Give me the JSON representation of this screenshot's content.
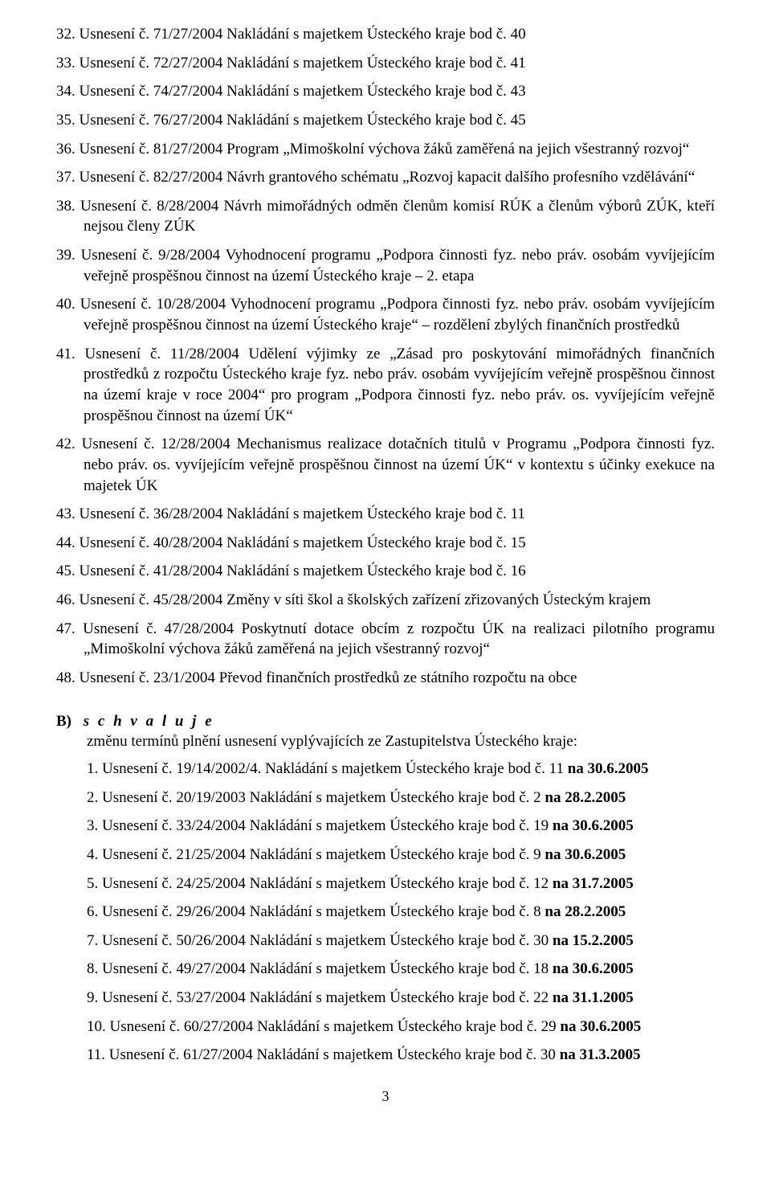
{
  "listA": [
    {
      "num": "32.",
      "text": "Usnesení č. 71/27/2004 Nakládání s majetkem Ústeckého kraje bod č. 40"
    },
    {
      "num": "33.",
      "text": "Usnesení č. 72/27/2004 Nakládání s majetkem Ústeckého kraje bod č. 41"
    },
    {
      "num": "34.",
      "text": "Usnesení č. 74/27/2004 Nakládání s majetkem Ústeckého kraje bod č. 43"
    },
    {
      "num": "35.",
      "text": "Usnesení č. 76/27/2004 Nakládání s majetkem Ústeckého kraje bod č. 45"
    },
    {
      "num": "36.",
      "text": "Usnesení č. 81/27/2004 Program „Mimoškolní výchova žáků zaměřená na jejich všestranný rozvoj“"
    },
    {
      "num": "37.",
      "text": "Usnesení č. 82/27/2004 Návrh grantového schématu „Rozvoj kapacit dalšího profesního vzdělávání“"
    },
    {
      "num": "38.",
      "text": "Usnesení č. 8/28/2004 Návrh mimořádných odměn členům komisí RÚK a členům výborů ZÚK, kteří nejsou členy ZÚK"
    },
    {
      "num": "39.",
      "text": "Usnesení č. 9/28/2004 Vyhodnocení programu „Podpora činnosti fyz. nebo práv. osobám vyvíjejícím veřejně prospěšnou činnost na území Ústeckého kraje – 2. etapa"
    },
    {
      "num": "40.",
      "text": "Usnesení č. 10/28/2004 Vyhodnocení programu „Podpora činnosti fyz. nebo práv. osobám vyvíjejícím veřejně prospěšnou činnost na území Ústeckého kraje“ – rozdělení zbylých finančních prostředků"
    },
    {
      "num": "41.",
      "text": "Usnesení č. 11/28/2004 Udělení výjimky ze „Zásad pro poskytování mimořádných finančních prostředků z rozpočtu Ústeckého kraje fyz. nebo práv. osobám vyvíjejícím veřejně prospěšnou činnost na území kraje v roce 2004“ pro program „Podpora činnosti fyz. nebo práv. os. vyvíjejícím veřejně prospěšnou činnost na území ÚK“"
    },
    {
      "num": "42.",
      "text": "Usnesení č. 12/28/2004 Mechanismus realizace dotačních titulů v Programu „Podpora činnosti fyz. nebo práv. os. vyvíjejícím veřejně prospěšnou činnost na území ÚK“ v kontextu s účinky exekuce na majetek ÚK"
    },
    {
      "num": "43.",
      "text": "Usnesení č. 36/28/2004 Nakládání s majetkem Ústeckého kraje bod č. 11"
    },
    {
      "num": "44.",
      "text": "Usnesení č. 40/28/2004 Nakládání s majetkem Ústeckého kraje bod č. 15"
    },
    {
      "num": "45.",
      "text": "Usnesení č. 41/28/2004 Nakládání s majetkem Ústeckého kraje bod č. 16"
    },
    {
      "num": "46.",
      "text": "Usnesení č. 45/28/2004 Změny v síti škol a školských zařízení zřizovaných Ústeckým krajem"
    },
    {
      "num": "47.",
      "text": "Usnesení č. 47/28/2004 Poskytnutí dotace obcím z rozpočtu ÚK na realizaci pilotního programu „Mimoškolní výchova žáků zaměřená na jejich všestranný rozvoj“"
    },
    {
      "num": "48.",
      "text": "Usnesení č. 23/1/2004 Převod finančních prostředků ze státního rozpočtu na obce"
    }
  ],
  "sectionB": {
    "prefix": "B)",
    "label": "s c h v a l u j e",
    "intro": "změnu termínů plnění usnesení vyplývajících ze Zastupitelstva Ústeckého kraje:",
    "items": [
      {
        "num": "1.",
        "text": "Usnesení č. 19/14/2002/4. Nakládání s majetkem Ústeckého kraje bod č. 11 ",
        "bold": "na 30.6.2005"
      },
      {
        "num": "2.",
        "text": "Usnesení č. 20/19/2003 Nakládání s majetkem Ústeckého kraje bod č. 2 ",
        "bold": "na 28.2.2005"
      },
      {
        "num": "3.",
        "text": "Usnesení č. 33/24/2004 Nakládání s majetkem Ústeckého kraje bod č. 19 ",
        "bold": "na 30.6.2005"
      },
      {
        "num": "4.",
        "text": "Usnesení č. 21/25/2004 Nakládání s majetkem Ústeckého kraje bod č. 9 ",
        "bold": "na 30.6.2005"
      },
      {
        "num": "5.",
        "text": "Usnesení č. 24/25/2004 Nakládání s majetkem Ústeckého kraje bod č. 12 ",
        "bold": "na 31.7.2005"
      },
      {
        "num": "6.",
        "text": "Usnesení č. 29/26/2004 Nakládání s majetkem Ústeckého kraje bod č. 8 ",
        "bold": "na 28.2.2005"
      },
      {
        "num": "7.",
        "text": "Usnesení č. 50/26/2004 Nakládání s majetkem Ústeckého kraje bod č. 30 ",
        "bold": "na 15.2.2005"
      },
      {
        "num": "8.",
        "text": "Usnesení č. 49/27/2004 Nakládání s majetkem Ústeckého kraje bod č. 18 ",
        "bold": "na 30.6.2005"
      },
      {
        "num": "9.",
        "text": "Usnesení č. 53/27/2004 Nakládání s majetkem Ústeckého kraje bod č. 22 ",
        "bold": "na 31.1.2005"
      },
      {
        "num": "10.",
        "text": "Usnesení č. 60/27/2004 Nakládání s majetkem Ústeckého kraje bod č. 29 ",
        "bold": "na 30.6.2005"
      },
      {
        "num": "11.",
        "text": "Usnesení č. 61/27/2004 Nakládání s majetkem Ústeckého kraje bod č. 30 ",
        "bold": "na 31.3.2005"
      }
    ]
  },
  "pageNumber": "3"
}
